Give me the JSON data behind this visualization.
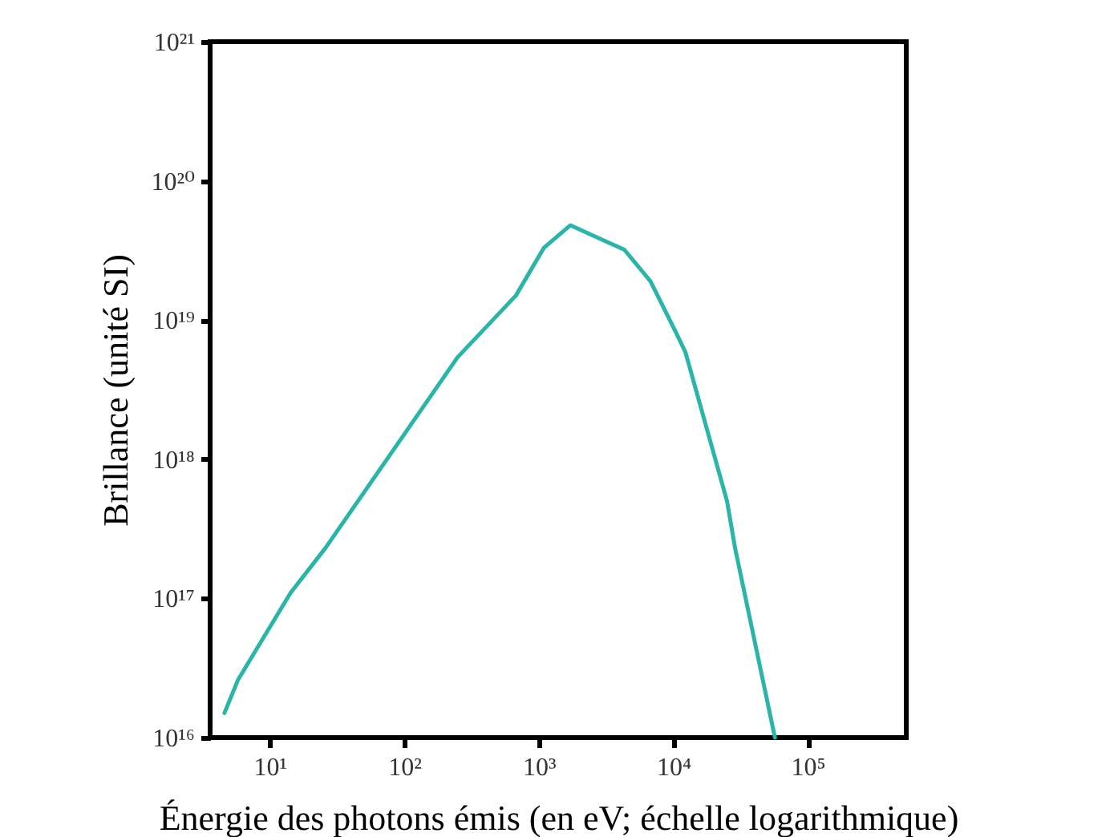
{
  "chart_data": {
    "type": "line",
    "xlabel": "Énergie des photons émis (en eV; échelle logarithmique)",
    "ylabel": "Brillance (unité SI)",
    "log": "xy",
    "grid": false,
    "legend": false,
    "marker": "none",
    "line_style": "solid",
    "xlim": [
      3.6,
      540000
    ],
    "ylim": [
      1e+16,
      1e+21
    ],
    "xticks": [
      {
        "value": 10,
        "label": "10¹"
      },
      {
        "value": 100,
        "label": "10²"
      },
      {
        "value": 1000,
        "label": "10³"
      },
      {
        "value": 10000,
        "label": "10⁴"
      },
      {
        "value": 100000,
        "label": "10⁵"
      }
    ],
    "yticks": [
      {
        "value": 1e+16,
        "label": "10¹⁶"
      },
      {
        "value": 1e+17,
        "label": "10¹⁷"
      },
      {
        "value": 1e+18,
        "label": "10¹⁸"
      },
      {
        "value": 1e+19,
        "label": "10¹⁹"
      },
      {
        "value": 1e+20,
        "label": "10²⁰"
      },
      {
        "value": 1e+21,
        "label": "10²¹"
      }
    ],
    "series": [
      {
        "color": "#2bb5a8",
        "x": [
          4.6,
          5.8,
          14.3,
          25.9,
          249,
          676,
          1090,
          1720,
          4330,
          6770,
          10500,
          12300,
          25100,
          28800,
          57000
        ],
        "values": [
          1.5e+16,
          2.6e+16,
          1.1e+17,
          2.3e+17,
          5.4e+18,
          1.5e+19,
          3.3e+19,
          4.8e+19,
          3.2e+19,
          1.9e+19,
          8.1e+18,
          5.9e+18,
          5e+17,
          2.3e+17,
          1e+16
        ]
      }
    ]
  }
}
